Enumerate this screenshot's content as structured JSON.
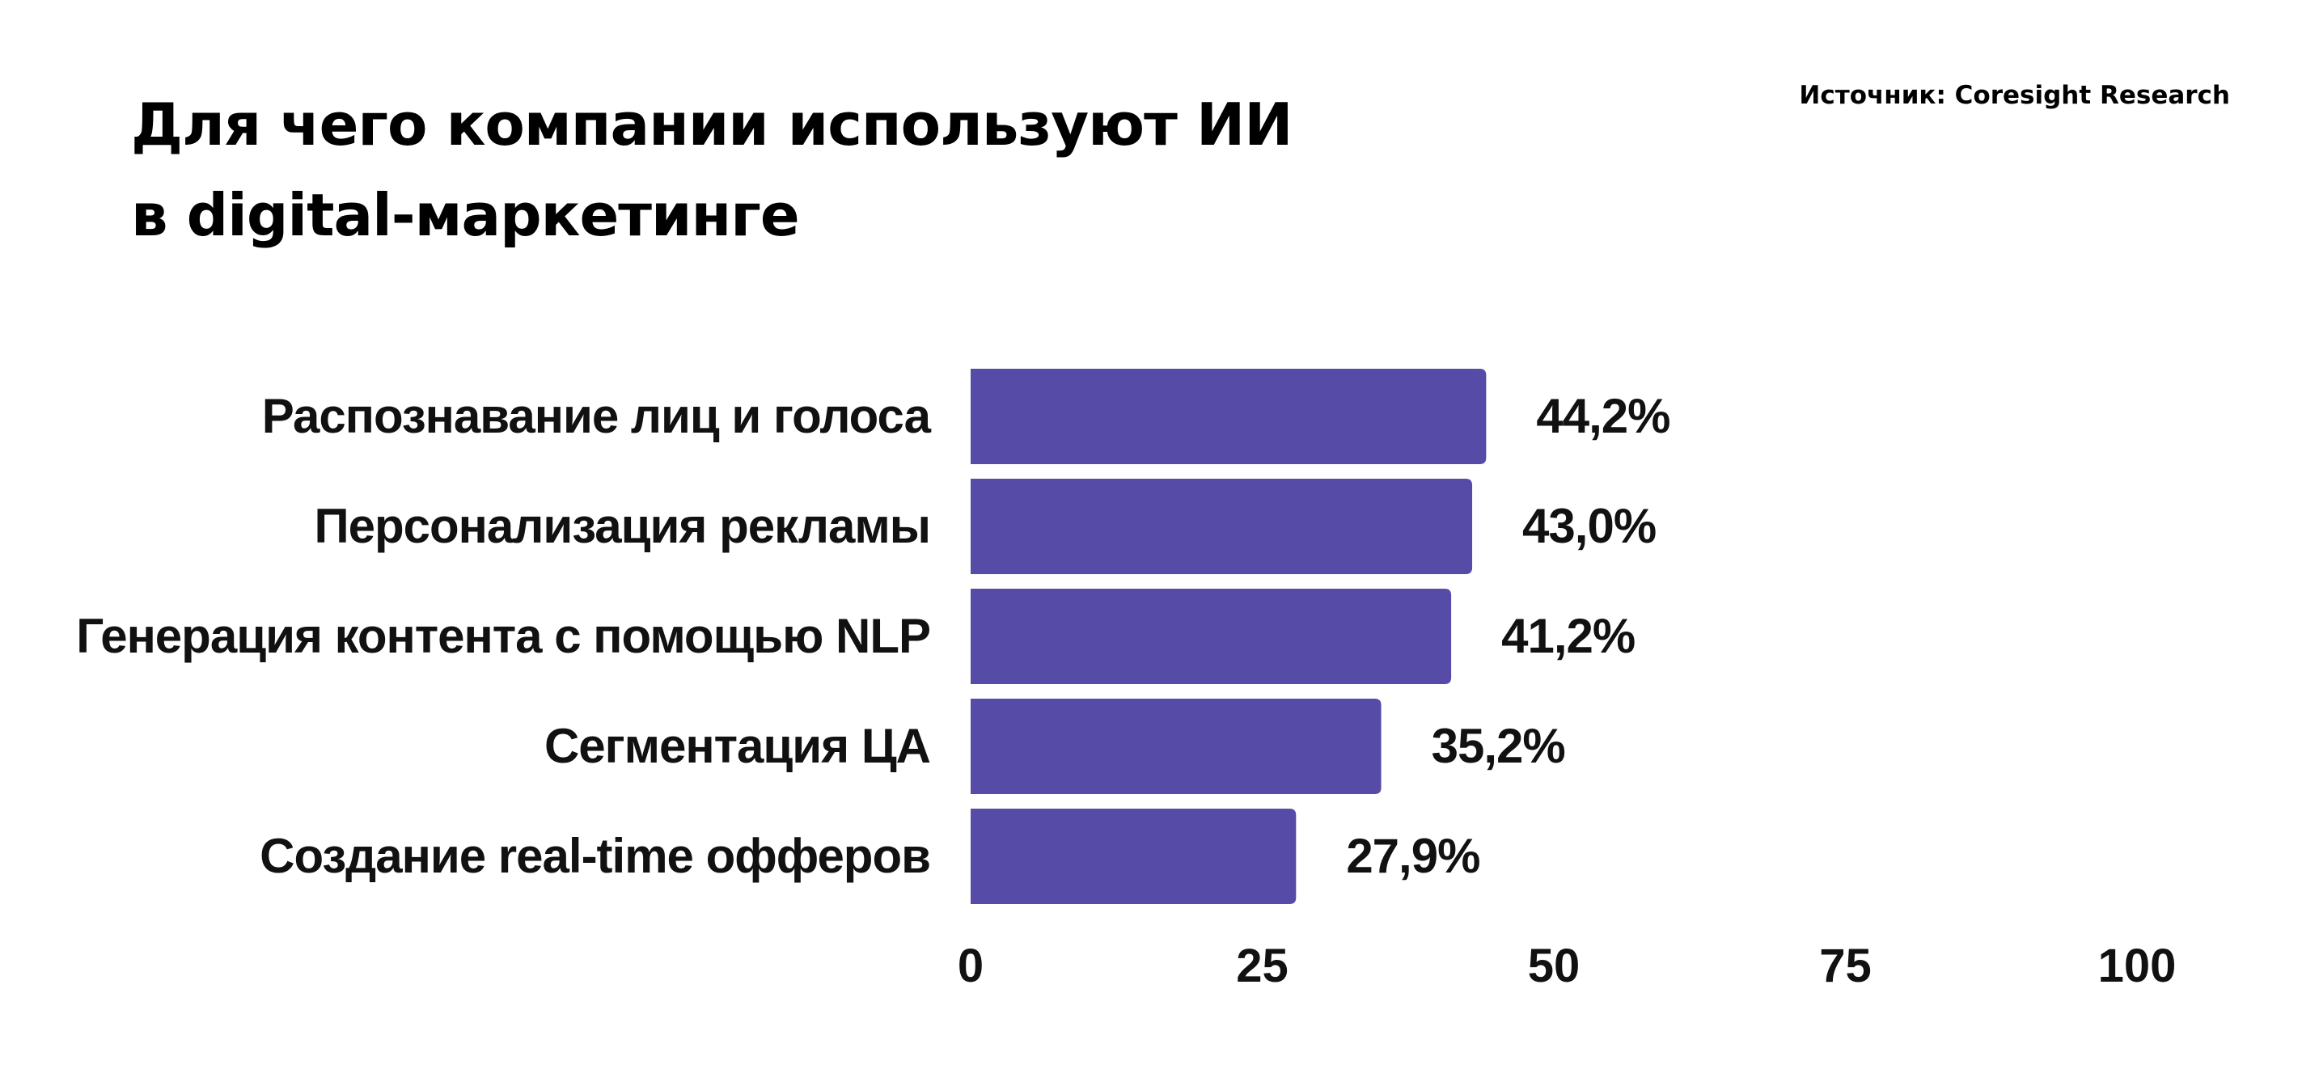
{
  "header": {
    "title_line1": "Для чего компании используют ИИ",
    "title_line2": "в digital-маркетинге",
    "source": "Источник: Coresight Research"
  },
  "colors": {
    "bar": "#564ba6",
    "text": "#111111",
    "background": "#ffffff"
  },
  "chart_data": {
    "type": "bar",
    "orientation": "horizontal",
    "title": "Для чего компании используют ИИ в digital-маркетинге",
    "categories": [
      "Распознавание лиц и голоса",
      "Персонализация рекламы",
      "Генерация контента с помощью NLP",
      "Сегментация ЦА",
      "Создание real-time офферов"
    ],
    "values": [
      44.2,
      43.0,
      41.2,
      35.2,
      27.9
    ],
    "value_labels": [
      "44,2%",
      "43,0%",
      "41,2%",
      "35,2%",
      "27,9%"
    ],
    "xlim": [
      0,
      100
    ],
    "xticks": [
      0,
      25,
      50,
      75,
      100
    ],
    "xtick_labels": [
      "0",
      "25",
      "50",
      "75",
      "100"
    ],
    "xlabel": "",
    "ylabel": "",
    "grid": false,
    "legend": "none"
  }
}
